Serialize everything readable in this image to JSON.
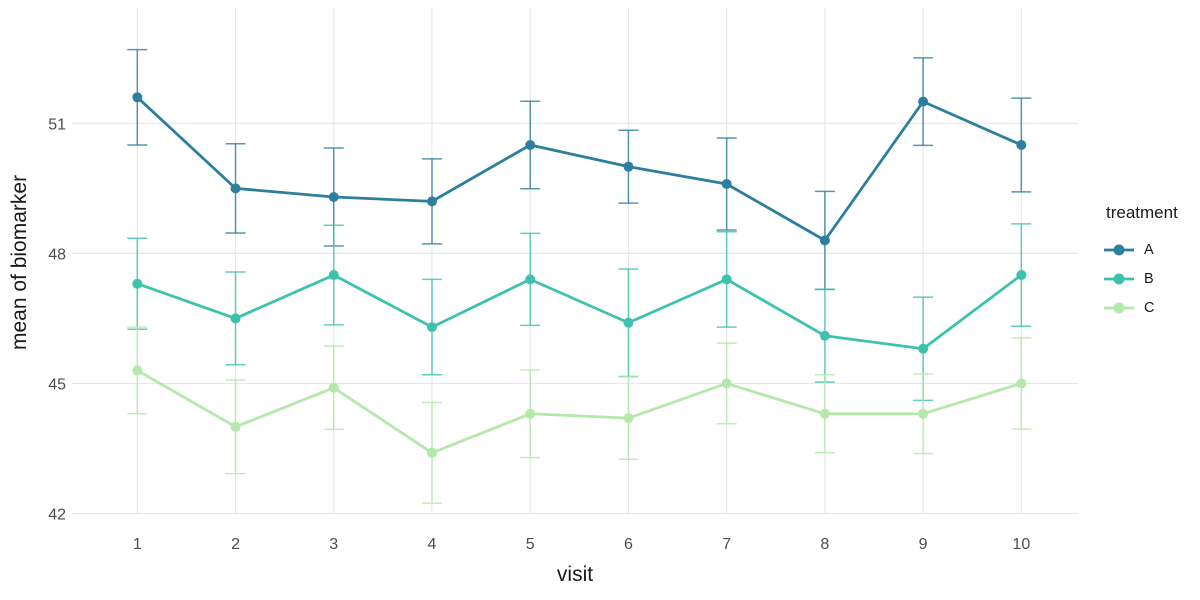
{
  "figure": {
    "background": "#ffffff"
  },
  "chart_data": {
    "type": "line",
    "title": "",
    "xlabel": "visit",
    "ylabel": "mean of biomarker",
    "legend_title": "treatment",
    "legend_position": "right",
    "grid": "major-only",
    "error_bars": true,
    "x": [
      1,
      2,
      3,
      4,
      5,
      6,
      7,
      8,
      9,
      10
    ],
    "xticks": [
      "1",
      "2",
      "3",
      "4",
      "5",
      "6",
      "7",
      "8",
      "9",
      "10"
    ],
    "yticks": [
      "42",
      "45",
      "48",
      "51"
    ],
    "ytick_values": [
      42,
      45,
      48,
      51
    ],
    "xlim": [
      0.335,
      10.577
    ],
    "ylim": [
      42,
      53.66
    ],
    "series": [
      {
        "name": "A",
        "color": "#2E7F9E",
        "values": [
          51.6,
          49.5,
          49.3,
          49.2,
          50.5,
          50.0,
          49.6,
          48.3,
          51.5,
          50.5
        ],
        "err": [
          1.1,
          1.03,
          1.13,
          0.98,
          1.01,
          0.84,
          1.06,
          1.13,
          1.01,
          1.08
        ]
      },
      {
        "name": "B",
        "color": "#3EC2AE",
        "values": [
          47.3,
          46.5,
          47.5,
          46.3,
          47.4,
          46.4,
          47.4,
          46.1,
          45.8,
          47.5
        ],
        "err": [
          1.05,
          1.07,
          1.15,
          1.1,
          1.06,
          1.24,
          1.1,
          1.07,
          1.19,
          1.18
        ]
      },
      {
        "name": "C",
        "color": "#B5E8AB",
        "values": [
          45.3,
          44.0,
          44.9,
          43.4,
          44.3,
          44.2,
          45.0,
          44.3,
          44.3,
          45.0
        ],
        "err": [
          1.0,
          1.08,
          0.96,
          1.16,
          1.01,
          0.95,
          0.93,
          0.9,
          0.92,
          1.05
        ]
      }
    ]
  },
  "colors": {
    "grid": "#e8e8e8",
    "tick_label": "#4d4d4d",
    "axis_title": "#1a1a1a"
  }
}
